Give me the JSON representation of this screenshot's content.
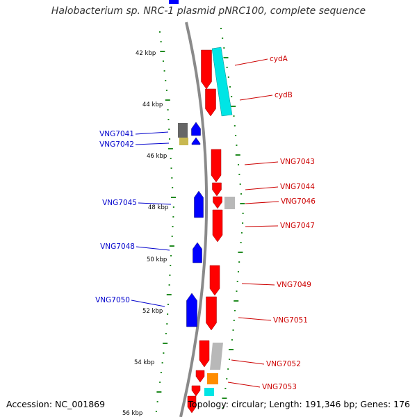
{
  "title": "Halobacterium sp. NRC-1 plasmid pNRC100, complete sequence",
  "footer": {
    "accession": "Accession: NC_001869",
    "summary": "Topology: circular; Length: 191,346 bp; Genes: 176"
  },
  "colors": {
    "backbone": "#8a8a8a",
    "forward_gene": "#ff0000",
    "reverse_gene": "#0000ff",
    "cyan_feature": "#00e5e5",
    "grey_feature": "#b8b8b8",
    "dark_grey_feature": "#666666",
    "olive_feature": "#c8b850",
    "orange_feature": "#ff8c00",
    "gc_dots": "#228b22",
    "forward_label": "#cc0000",
    "reverse_label": "#0000cc"
  },
  "ticks": [
    "42 kbp",
    "44 kbp",
    "46 kbp",
    "48 kbp",
    "50 kbp",
    "52 kbp",
    "54 kbp",
    "56 kbp"
  ],
  "genes_forward": [
    {
      "name": "cydA"
    },
    {
      "name": "cydB"
    },
    {
      "name": "VNG7043"
    },
    {
      "name": "VNG7044"
    },
    {
      "name": "VNG7046"
    },
    {
      "name": "VNG7047"
    },
    {
      "name": "VNG7049"
    },
    {
      "name": "VNG7051"
    },
    {
      "name": "VNG7052"
    },
    {
      "name": "VNG7053"
    }
  ],
  "genes_reverse": [
    {
      "name": "VNG7041"
    },
    {
      "name": "VNG7042"
    },
    {
      "name": "VNG7045"
    },
    {
      "name": "VNG7048"
    },
    {
      "name": "VNG7050"
    }
  ]
}
